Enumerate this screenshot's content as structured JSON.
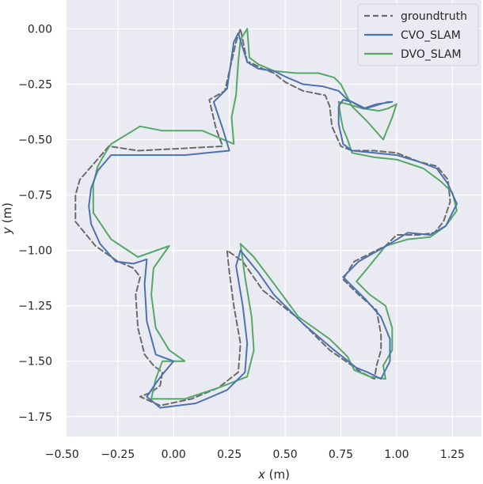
{
  "chart_data": {
    "type": "line",
    "xlabel_var": "x",
    "xlabel_unit": " (m)",
    "ylabel_var": "y",
    "ylabel_unit": " (m)",
    "xlim": [
      -0.48,
      1.38
    ],
    "ylim": [
      -1.84,
      0.13
    ],
    "xticks": [
      -0.5,
      -0.25,
      0.0,
      0.25,
      0.5,
      0.75,
      1.0,
      1.25
    ],
    "xtick_labels": [
      "−0.50",
      "−0.25",
      "0.00",
      "0.25",
      "0.50",
      "0.75",
      "1.00",
      "1.25"
    ],
    "yticks": [
      0.0,
      -0.25,
      -0.5,
      -0.75,
      -1.0,
      -1.25,
      -1.5,
      -1.75
    ],
    "ytick_labels": [
      "0.00",
      "−0.25",
      "−0.50",
      "−0.75",
      "−1.00",
      "−1.25",
      "−1.50",
      "−1.75"
    ],
    "grid": true,
    "legend_position": "top-right",
    "colors": {
      "background": "#eaeaf2",
      "grid": "#ffffff",
      "groundtruth": "#6a6a6a",
      "cvo": "#4c72b0",
      "dvo": "#55a868"
    },
    "series": [
      {
        "name": "groundtruth",
        "key": "groundtruth",
        "style": "dashed",
        "points": [
          [
            0.33,
            -0.15
          ],
          [
            0.3,
            0.0
          ],
          [
            0.28,
            -0.06
          ],
          [
            0.23,
            -0.28
          ],
          [
            0.16,
            -0.32
          ],
          [
            0.19,
            -0.45
          ],
          [
            0.22,
            -0.53
          ],
          [
            0.04,
            -0.54
          ],
          [
            -0.16,
            -0.55
          ],
          [
            -0.29,
            -0.53
          ],
          [
            -0.35,
            -0.6
          ],
          [
            -0.42,
            -0.68
          ],
          [
            -0.44,
            -0.75
          ],
          [
            -0.44,
            -0.87
          ],
          [
            -0.35,
            -0.98
          ],
          [
            -0.25,
            -1.05
          ],
          [
            -0.18,
            -1.08
          ],
          [
            -0.15,
            -1.12
          ],
          [
            -0.17,
            -1.2
          ],
          [
            -0.16,
            -1.35
          ],
          [
            -0.13,
            -1.47
          ],
          [
            -0.09,
            -1.52
          ],
          [
            -0.05,
            -1.55
          ],
          [
            -0.06,
            -1.61
          ],
          [
            -0.1,
            -1.64
          ],
          [
            -0.15,
            -1.66
          ],
          [
            -0.06,
            -1.7
          ],
          [
            0.08,
            -1.67
          ],
          [
            0.2,
            -1.62
          ],
          [
            0.29,
            -1.55
          ],
          [
            0.3,
            -1.42
          ],
          [
            0.27,
            -1.25
          ],
          [
            0.25,
            -1.1
          ],
          [
            0.24,
            -1.0
          ],
          [
            0.31,
            -1.05
          ],
          [
            0.4,
            -1.18
          ],
          [
            0.55,
            -1.3
          ],
          [
            0.7,
            -1.45
          ],
          [
            0.8,
            -1.52
          ],
          [
            0.84,
            -1.55
          ],
          [
            0.9,
            -1.58
          ],
          [
            0.91,
            -1.52
          ],
          [
            0.93,
            -1.45
          ],
          [
            0.93,
            -1.38
          ],
          [
            0.91,
            -1.27
          ],
          [
            0.83,
            -1.2
          ],
          [
            0.76,
            -1.13
          ],
          [
            0.81,
            -1.05
          ],
          [
            0.95,
            -0.98
          ],
          [
            1.0,
            -0.93
          ],
          [
            1.1,
            -0.93
          ],
          [
            1.17,
            -0.92
          ],
          [
            1.21,
            -0.87
          ],
          [
            1.24,
            -0.78
          ],
          [
            1.23,
            -0.68
          ],
          [
            1.18,
            -0.62
          ],
          [
            1.1,
            -0.6
          ],
          [
            1.0,
            -0.56
          ],
          [
            0.9,
            -0.55
          ],
          [
            0.8,
            -0.55
          ],
          [
            0.75,
            -0.53
          ],
          [
            0.71,
            -0.44
          ],
          [
            0.7,
            -0.35
          ],
          [
            0.68,
            -0.3
          ],
          [
            0.58,
            -0.28
          ],
          [
            0.5,
            -0.24
          ],
          [
            0.45,
            -0.2
          ],
          [
            0.4,
            -0.18
          ],
          [
            0.34,
            -0.15
          ]
        ]
      },
      {
        "name": "CVO_SLAM",
        "key": "cvo",
        "style": "solid",
        "points": [
          [
            0.33,
            -0.15
          ],
          [
            0.29,
            -0.02
          ],
          [
            0.27,
            -0.06
          ],
          [
            0.24,
            -0.27
          ],
          [
            0.18,
            -0.33
          ],
          [
            0.22,
            -0.45
          ],
          [
            0.25,
            -0.55
          ],
          [
            0.05,
            -0.57
          ],
          [
            -0.15,
            -0.57
          ],
          [
            -0.28,
            -0.57
          ],
          [
            -0.34,
            -0.64
          ],
          [
            -0.37,
            -0.72
          ],
          [
            -0.38,
            -0.8
          ],
          [
            -0.37,
            -0.88
          ],
          [
            -0.33,
            -0.97
          ],
          [
            -0.26,
            -1.05
          ],
          [
            -0.18,
            -1.06
          ],
          [
            -0.12,
            -1.04
          ],
          [
            -0.13,
            -1.15
          ],
          [
            -0.12,
            -1.32
          ],
          [
            -0.08,
            -1.47
          ],
          [
            0.0,
            -1.5
          ],
          [
            -0.05,
            -1.56
          ],
          [
            -0.08,
            -1.6
          ],
          [
            -0.12,
            -1.66
          ],
          [
            -0.06,
            -1.71
          ],
          [
            0.1,
            -1.69
          ],
          [
            0.24,
            -1.63
          ],
          [
            0.32,
            -1.55
          ],
          [
            0.33,
            -1.42
          ],
          [
            0.31,
            -1.25
          ],
          [
            0.28,
            -1.07
          ],
          [
            0.3,
            -1.0
          ],
          [
            0.38,
            -1.1
          ],
          [
            0.45,
            -1.2
          ],
          [
            0.58,
            -1.33
          ],
          [
            0.72,
            -1.45
          ],
          [
            0.82,
            -1.53
          ],
          [
            0.87,
            -1.55
          ],
          [
            0.93,
            -1.58
          ],
          [
            0.97,
            -1.5
          ],
          [
            0.97,
            -1.4
          ],
          [
            0.93,
            -1.3
          ],
          [
            0.86,
            -1.22
          ],
          [
            0.76,
            -1.12
          ],
          [
            0.83,
            -1.05
          ],
          [
            0.97,
            -0.97
          ],
          [
            1.05,
            -0.92
          ],
          [
            1.15,
            -0.93
          ],
          [
            1.22,
            -0.89
          ],
          [
            1.27,
            -0.79
          ],
          [
            1.23,
            -0.7
          ],
          [
            1.18,
            -0.63
          ],
          [
            1.1,
            -0.6
          ],
          [
            1.0,
            -0.57
          ],
          [
            0.9,
            -0.56
          ],
          [
            0.8,
            -0.55
          ],
          [
            0.76,
            -0.52
          ],
          [
            0.74,
            -0.43
          ],
          [
            0.74,
            -0.35
          ],
          [
            0.76,
            -0.32
          ],
          [
            0.8,
            -0.33
          ],
          [
            0.85,
            -0.36
          ],
          [
            0.91,
            -0.34
          ],
          [
            0.98,
            -0.33
          ],
          [
            0.96,
            -0.33
          ],
          [
            0.86,
            -0.36
          ],
          [
            0.78,
            -0.32
          ],
          [
            0.74,
            -0.28
          ],
          [
            0.67,
            -0.26
          ],
          [
            0.58,
            -0.25
          ],
          [
            0.51,
            -0.22
          ],
          [
            0.45,
            -0.19
          ],
          [
            0.38,
            -0.18
          ],
          [
            0.33,
            -0.15
          ]
        ]
      },
      {
        "name": "DVO_SLAM",
        "key": "dvo",
        "style": "solid",
        "points": [
          [
            0.34,
            -0.13
          ],
          [
            0.33,
            0.0
          ],
          [
            0.3,
            -0.05
          ],
          [
            0.29,
            -0.15
          ],
          [
            0.28,
            -0.3
          ],
          [
            0.26,
            -0.4
          ],
          [
            0.27,
            -0.52
          ],
          [
            0.13,
            -0.46
          ],
          [
            -0.05,
            -0.46
          ],
          [
            -0.15,
            -0.44
          ],
          [
            -0.28,
            -0.52
          ],
          [
            -0.3,
            -0.55
          ],
          [
            -0.34,
            -0.62
          ],
          [
            -0.36,
            -0.7
          ],
          [
            -0.36,
            -0.83
          ],
          [
            -0.28,
            -0.95
          ],
          [
            -0.16,
            -1.03
          ],
          [
            -0.02,
            -0.98
          ],
          [
            -0.09,
            -1.08
          ],
          [
            -0.1,
            -1.2
          ],
          [
            -0.08,
            -1.35
          ],
          [
            -0.02,
            -1.45
          ],
          [
            0.05,
            -1.5
          ],
          [
            -0.05,
            -1.5
          ],
          [
            -0.08,
            -1.58
          ],
          [
            -0.1,
            -1.67
          ],
          [
            0.05,
            -1.67
          ],
          [
            0.2,
            -1.62
          ],
          [
            0.33,
            -1.57
          ],
          [
            0.36,
            -1.45
          ],
          [
            0.35,
            -1.3
          ],
          [
            0.32,
            -1.12
          ],
          [
            0.3,
            -0.97
          ],
          [
            0.36,
            -1.03
          ],
          [
            0.45,
            -1.15
          ],
          [
            0.56,
            -1.3
          ],
          [
            0.7,
            -1.4
          ],
          [
            0.78,
            -1.48
          ],
          [
            0.81,
            -1.54
          ],
          [
            0.88,
            -1.57
          ],
          [
            0.95,
            -1.58
          ],
          [
            0.94,
            -1.52
          ],
          [
            0.98,
            -1.45
          ],
          [
            0.98,
            -1.35
          ],
          [
            0.95,
            -1.25
          ],
          [
            0.88,
            -1.2
          ],
          [
            0.82,
            -1.14
          ],
          [
            0.87,
            -1.08
          ],
          [
            0.95,
            -0.98
          ],
          [
            1.05,
            -0.95
          ],
          [
            1.15,
            -0.94
          ],
          [
            1.22,
            -0.89
          ],
          [
            1.27,
            -0.82
          ],
          [
            1.25,
            -0.74
          ],
          [
            1.2,
            -0.69
          ],
          [
            1.12,
            -0.63
          ],
          [
            1.0,
            -0.59
          ],
          [
            0.9,
            -0.58
          ],
          [
            0.8,
            -0.56
          ],
          [
            0.78,
            -0.5
          ],
          [
            0.76,
            -0.45
          ],
          [
            0.75,
            -0.4
          ],
          [
            0.74,
            -0.33
          ],
          [
            0.78,
            -0.34
          ],
          [
            0.85,
            -0.36
          ],
          [
            0.92,
            -0.37
          ],
          [
            0.96,
            -0.36
          ],
          [
            1.0,
            -0.34
          ],
          [
            0.98,
            -0.4
          ],
          [
            0.94,
            -0.5
          ],
          [
            0.87,
            -0.42
          ],
          [
            0.8,
            -0.35
          ],
          [
            0.75,
            -0.25
          ],
          [
            0.72,
            -0.22
          ],
          [
            0.65,
            -0.2
          ],
          [
            0.55,
            -0.2
          ],
          [
            0.45,
            -0.19
          ],
          [
            0.38,
            -0.16
          ],
          [
            0.34,
            -0.13
          ]
        ]
      }
    ]
  }
}
